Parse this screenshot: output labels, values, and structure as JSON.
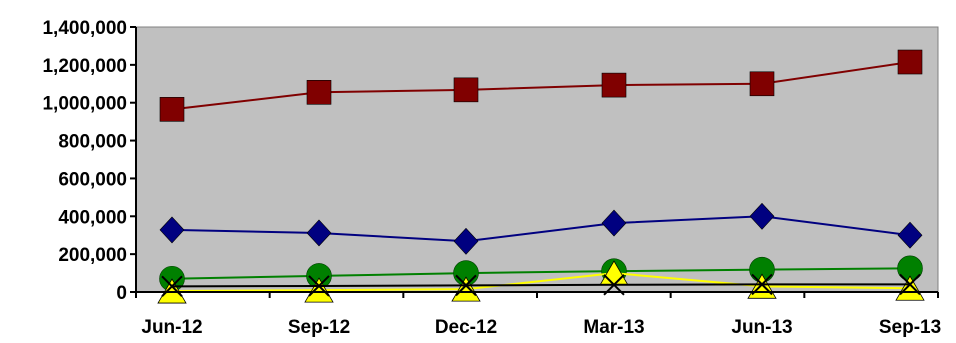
{
  "chart_data": {
    "type": "line",
    "categories": [
      "Jun-12",
      "Sep-12",
      "Dec-12",
      "Mar-13",
      "Jun-13",
      "Sep-13"
    ],
    "ylim": [
      0,
      1400000
    ],
    "y_ticks": [
      {
        "value": 0,
        "label": "0"
      },
      {
        "value": 200000,
        "label": "200,000"
      },
      {
        "value": 400000,
        "label": "400,000"
      },
      {
        "value": 600000,
        "label": "600,000"
      },
      {
        "value": 800000,
        "label": "800,000"
      },
      {
        "value": 1000000,
        "label": "1,000,000"
      },
      {
        "value": 1200000,
        "label": "1,200,000"
      },
      {
        "value": 1400000,
        "label": "1,400,000"
      }
    ],
    "grid": false,
    "legend": "none",
    "plot_background": "#c0c0c0",
    "series": [
      {
        "values": [
          965000,
          1055000,
          1068000,
          1093000,
          1100000,
          1215000
        ],
        "color": "#800000",
        "marker": "square"
      },
      {
        "values": [
          328000,
          312000,
          268000,
          364000,
          400000,
          300000
        ],
        "color": "#000080",
        "marker": "diamond"
      },
      {
        "values": [
          70000,
          85000,
          100000,
          110000,
          118000,
          125000
        ],
        "color": "#008000",
        "marker": "circle"
      },
      {
        "values": [
          5000,
          10000,
          15000,
          100000,
          30000,
          20000
        ],
        "color": "#ffff00",
        "marker": "triangle"
      },
      {
        "values": [
          30000,
          32000,
          35000,
          38000,
          40000,
          40000
        ],
        "color": "#000000",
        "marker": "x"
      }
    ]
  }
}
